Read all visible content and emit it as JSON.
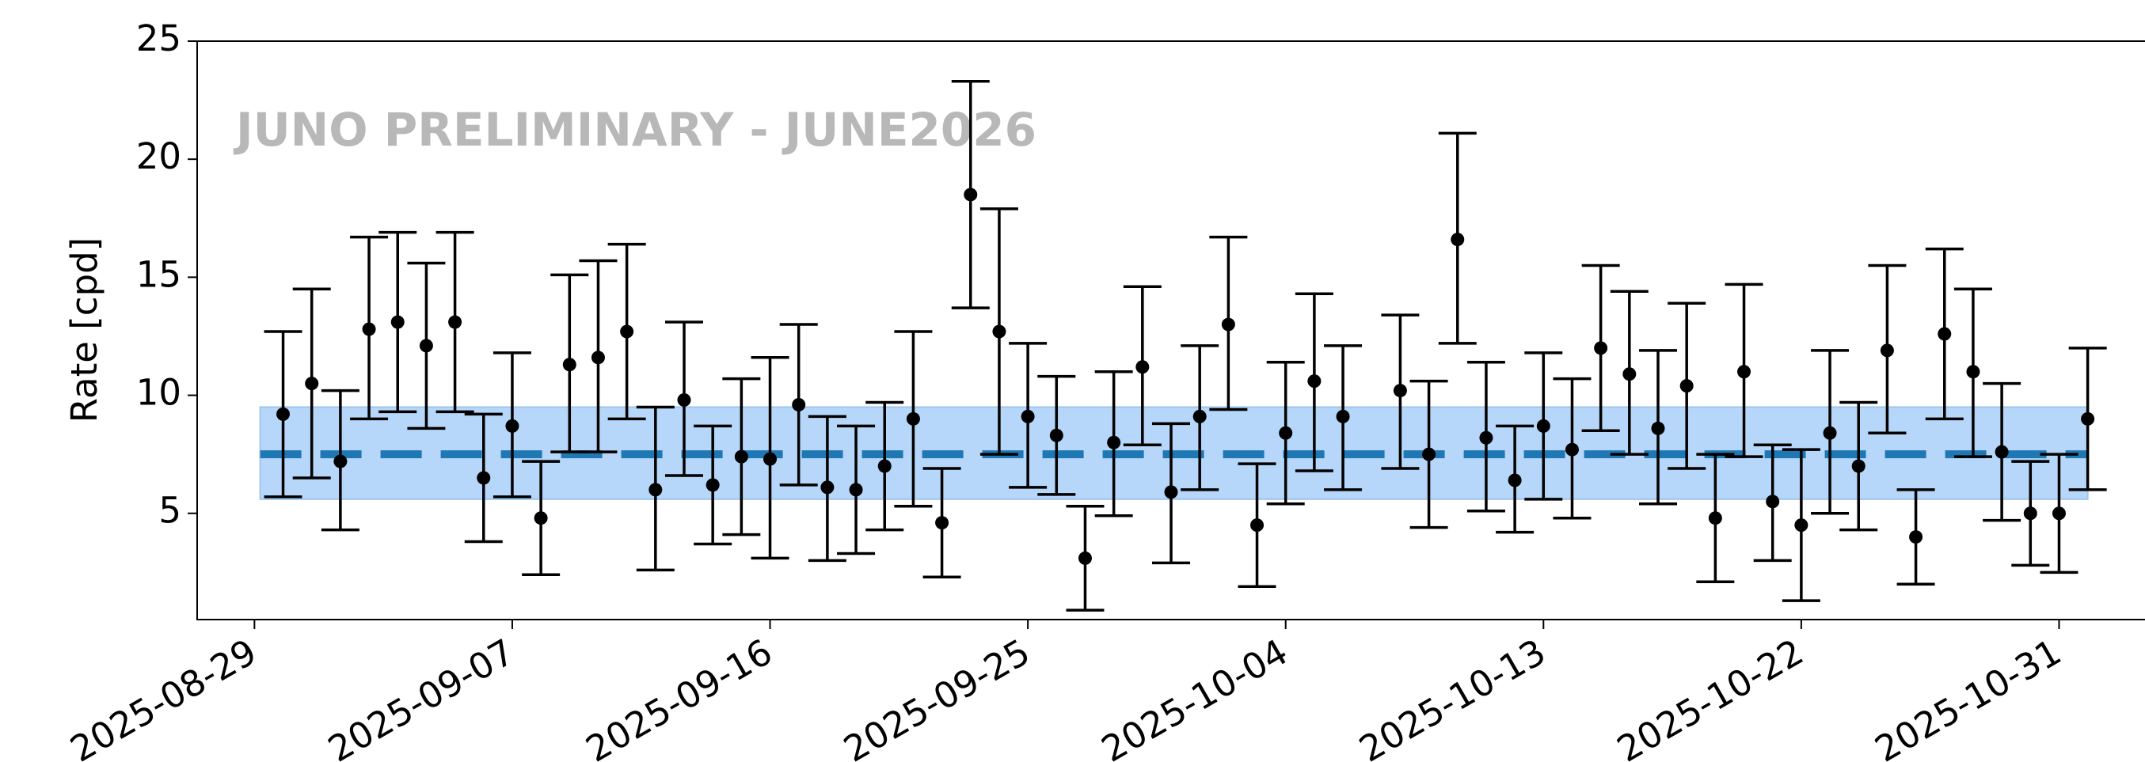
{
  "chart_data": {
    "type": "scatter",
    "ylabel": "Rate [cpd]",
    "annotation": "JUNO PRELIMINARY - JUNE2026",
    "x": [
      "2025-08-30",
      "2025-08-31",
      "2025-09-01",
      "2025-09-02",
      "2025-09-03",
      "2025-09-04",
      "2025-09-05",
      "2025-09-06",
      "2025-09-07",
      "2025-09-08",
      "2025-09-09",
      "2025-09-10",
      "2025-09-11",
      "2025-09-12",
      "2025-09-13",
      "2025-09-14",
      "2025-09-15",
      "2025-09-16",
      "2025-09-17",
      "2025-09-18",
      "2025-09-19",
      "2025-09-20",
      "2025-09-21",
      "2025-09-22",
      "2025-09-23",
      "2025-09-24",
      "2025-09-25",
      "2025-09-26",
      "2025-09-27",
      "2025-09-28",
      "2025-09-29",
      "2025-09-30",
      "2025-10-01",
      "2025-10-02",
      "2025-10-03",
      "2025-10-04",
      "2025-10-05",
      "2025-10-06",
      "2025-10-08",
      "2025-10-09",
      "2025-10-10",
      "2025-10-11",
      "2025-10-12",
      "2025-10-13",
      "2025-10-14",
      "2025-10-15",
      "2025-10-16",
      "2025-10-17",
      "2025-10-18",
      "2025-10-19",
      "2025-10-20",
      "2025-10-21",
      "2025-10-22",
      "2025-10-23",
      "2025-10-24",
      "2025-10-25",
      "2025-10-26",
      "2025-10-27",
      "2025-10-28",
      "2025-10-29",
      "2025-10-30",
      "2025-10-31",
      "2025-11-01"
    ],
    "series": [
      {
        "color": "#000000",
        "values": [
          9.2,
          10.5,
          7.2,
          12.8,
          13.1,
          12.1,
          13.1,
          6.5,
          8.7,
          4.8,
          11.3,
          11.6,
          12.7,
          6.0,
          9.8,
          6.2,
          7.4,
          7.3,
          9.6,
          6.1,
          6.0,
          7.0,
          9.0,
          4.6,
          18.5,
          12.7,
          9.1,
          8.3,
          3.1,
          8.0,
          11.2,
          5.9,
          9.1,
          13.0,
          4.5,
          8.4,
          10.6,
          9.1,
          10.2,
          7.5,
          16.6,
          8.2,
          6.4,
          8.7,
          7.7,
          12.0,
          10.9,
          8.6,
          10.4,
          4.8,
          11.0,
          5.5,
          4.5,
          8.4,
          7.0,
          11.9,
          4.0,
          12.6,
          11.0,
          7.6,
          5.0,
          5.0,
          9.0
        ],
        "lower": [
          5.7,
          6.5,
          4.3,
          9.0,
          9.3,
          8.6,
          9.3,
          3.8,
          5.7,
          2.4,
          7.6,
          7.6,
          9.0,
          2.6,
          6.6,
          3.7,
          4.1,
          3.1,
          6.2,
          3.0,
          3.3,
          4.3,
          5.3,
          2.3,
          13.7,
          7.5,
          6.1,
          5.8,
          0.9,
          4.9,
          7.9,
          2.9,
          6.0,
          9.4,
          1.9,
          5.4,
          6.8,
          6.0,
          6.9,
          4.4,
          12.2,
          5.1,
          4.2,
          5.6,
          4.8,
          8.5,
          7.5,
          5.4,
          6.9,
          2.1,
          7.4,
          3.0,
          1.3,
          5.0,
          4.3,
          8.4,
          2.0,
          9.0,
          7.4,
          4.7,
          2.8,
          2.5,
          6.0
        ],
        "upper": [
          12.7,
          14.5,
          10.2,
          16.7,
          16.9,
          15.6,
          16.9,
          9.2,
          11.8,
          7.2,
          15.1,
          15.7,
          16.4,
          9.5,
          13.1,
          8.7,
          10.7,
          11.6,
          13.0,
          9.1,
          8.7,
          9.7,
          12.7,
          6.9,
          23.3,
          17.9,
          12.2,
          10.8,
          5.3,
          11.0,
          14.6,
          8.8,
          12.1,
          16.7,
          7.1,
          11.4,
          14.3,
          12.1,
          13.4,
          10.6,
          21.1,
          11.4,
          8.7,
          11.8,
          10.7,
          15.5,
          14.4,
          11.9,
          13.9,
          7.5,
          14.7,
          7.9,
          7.7,
          11.9,
          9.7,
          15.5,
          6.0,
          16.2,
          14.5,
          10.5,
          7.2,
          7.5,
          12.0
        ]
      }
    ],
    "band": {
      "range": [
        5.6,
        9.5
      ],
      "color": "#b6d7f9"
    },
    "reference": {
      "value": 7.5,
      "color": "#1f77b4"
    },
    "xlim": [
      "2025-08-27",
      "2025-11-03"
    ],
    "xticks": [
      "2025-08-29",
      "2025-09-07",
      "2025-09-16",
      "2025-09-25",
      "2025-10-04",
      "2025-10-13",
      "2025-10-22",
      "2025-10-31"
    ],
    "ylim": [
      0.5,
      25
    ],
    "yticks": [
      5,
      10,
      15,
      20,
      25
    ]
  }
}
